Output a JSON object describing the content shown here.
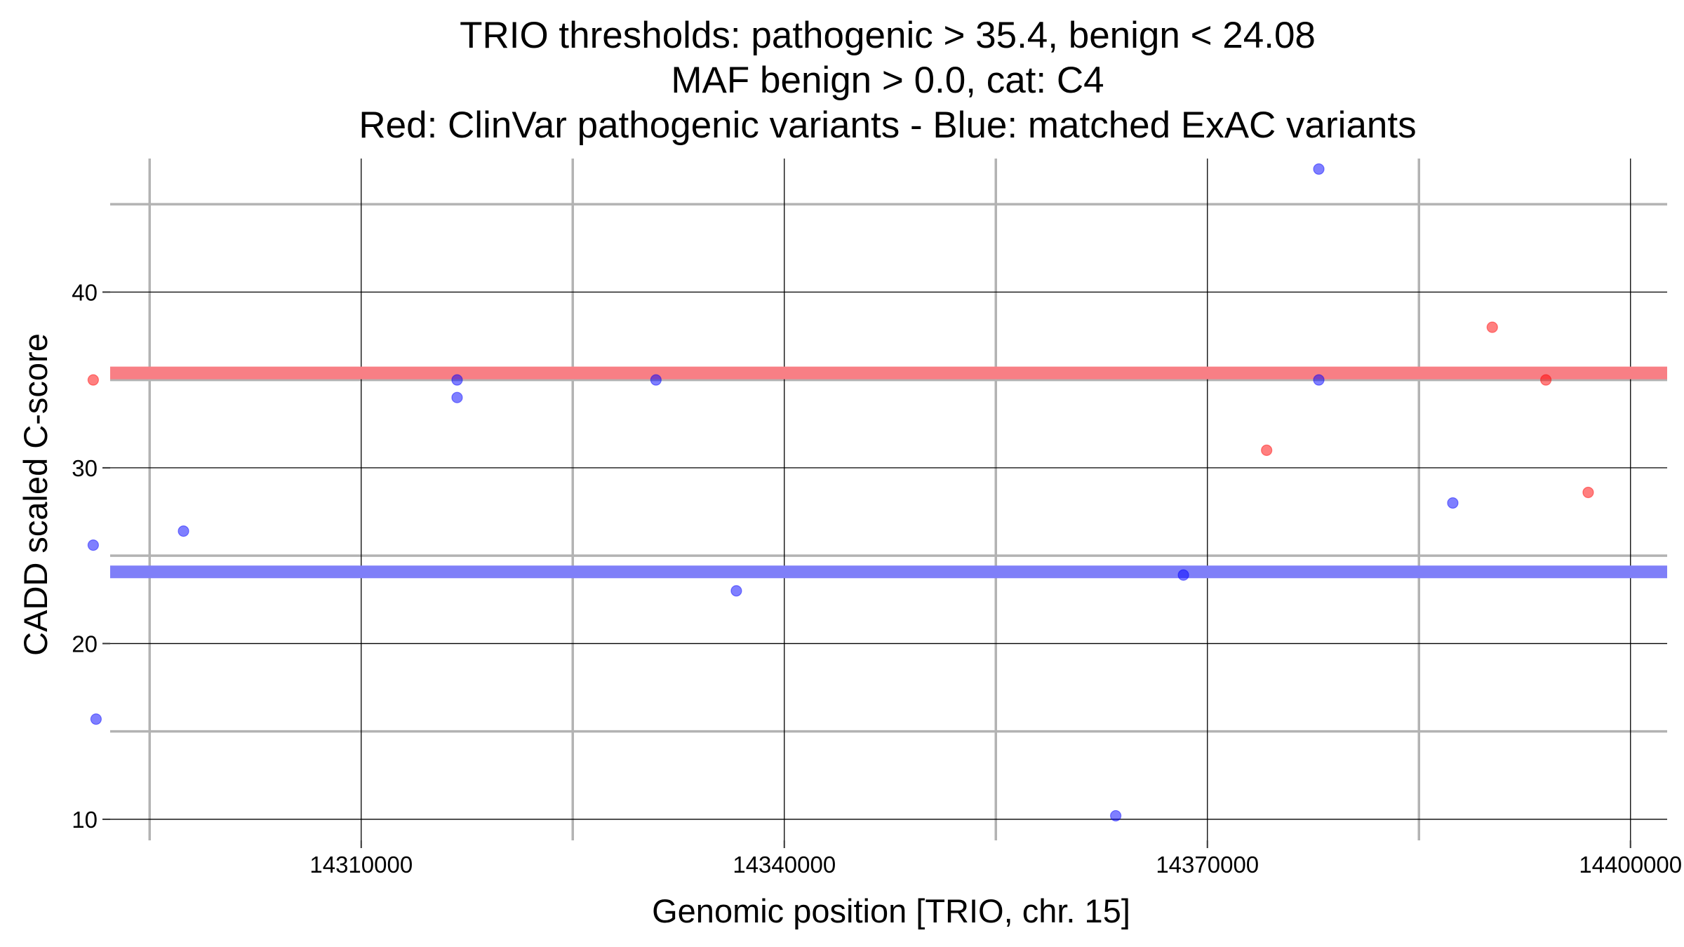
{
  "chart_data": {
    "type": "scatter",
    "title_lines": [
      "TRIO thresholds: pathogenic > 35.4, benign < 24.08",
      "MAF benign > 0.0, cat: C4",
      "Red: ClinVar pathogenic variants - Blue: matched ExAC variants"
    ],
    "xlabel": "Genomic position [TRIO, chr. 15]",
    "ylabel": "CADD scaled C-score",
    "xlim": [
      14292200,
      14402600
    ],
    "ylim": [
      8.8,
      47.6
    ],
    "x_ticks": [
      14310000,
      14340000,
      14370000,
      14400000
    ],
    "x_tick_labels": [
      "14310000",
      "14340000",
      "14370000",
      "14400000"
    ],
    "x_minor_grid": [
      14295000,
      14325000,
      14355000,
      14385000
    ],
    "y_ticks": [
      10,
      20,
      30,
      40
    ],
    "y_tick_labels": [
      "10",
      "20",
      "30",
      "40"
    ],
    "y_minor_grid": [
      15,
      25,
      35,
      45
    ],
    "grid": true,
    "thresholds": [
      {
        "name": "pathogenic",
        "value": 35.4,
        "color": "#f87f85"
      },
      {
        "name": "benign",
        "value": 24.08,
        "color": "#7f7ff8"
      }
    ],
    "series": [
      {
        "color": "#ff0000",
        "points": [
          {
            "x": 14291000,
            "y": 35.0
          },
          {
            "x": 14374200,
            "y": 31.0
          },
          {
            "x": 14390200,
            "y": 38.0
          },
          {
            "x": 14394000,
            "y": 35.0
          },
          {
            "x": 14397000,
            "y": 28.6
          }
        ]
      },
      {
        "color": "#0000ff",
        "points": [
          {
            "x": 14291000,
            "y": 25.6
          },
          {
            "x": 14291200,
            "y": 15.7
          },
          {
            "x": 14297400,
            "y": 26.4
          },
          {
            "x": 14316800,
            "y": 35.0
          },
          {
            "x": 14316800,
            "y": 34.0
          },
          {
            "x": 14330900,
            "y": 35.0
          },
          {
            "x": 14336600,
            "y": 23.0
          },
          {
            "x": 14363500,
            "y": 10.2
          },
          {
            "x": 14368300,
            "y": 23.9
          },
          {
            "x": 14377900,
            "y": 47.0
          },
          {
            "x": 14377900,
            "y": 35.0
          },
          {
            "x": 14387400,
            "y": 28.0
          }
        ]
      }
    ]
  }
}
